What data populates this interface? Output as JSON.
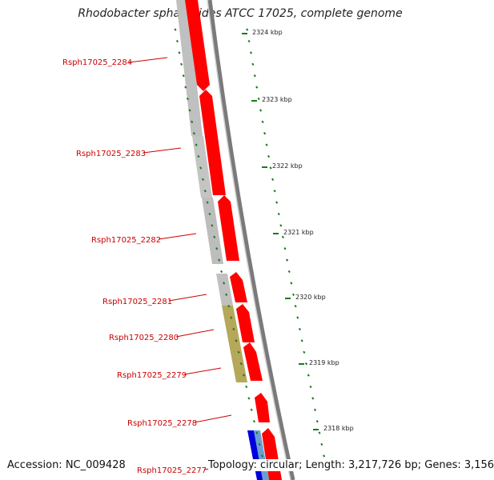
{
  "title": "Rhodobacter sphaeroides ATCC 17025, complete genome",
  "footer": {
    "accession": "Accession: NC_009428",
    "topology": "Topology: circular; Length: 3,217,726 bp; Genes: 3,156"
  },
  "colors": {
    "cds": "#ff0000",
    "gene": "#c0c0c0",
    "gene_alt": "#b5a85a",
    "ruler": "#888888",
    "tick": "#1a7a1a",
    "label": "#cc0000",
    "rna_blue": "#0000dd",
    "rna_lightblue": "#6aa0d0"
  },
  "ticks": [
    {
      "label": "2324 kbp"
    },
    {
      "label": "2323 kbp"
    },
    {
      "label": "2322 kbp"
    },
    {
      "label": "2321 kbp"
    },
    {
      "label": "2320 kbp"
    },
    {
      "label": "2319 kbp"
    },
    {
      "label": "2318 kbp"
    }
  ],
  "genes": [
    {
      "name": "Rsph17025_2284"
    },
    {
      "name": "Rsph17025_2283"
    },
    {
      "name": "Rsph17025_2282"
    },
    {
      "name": "Rsph17025_2281"
    },
    {
      "name": "Rsph17025_2280"
    },
    {
      "name": "Rsph17025_2279"
    },
    {
      "name": "Rsph17025_2278"
    },
    {
      "name": "Rsph17025_2277"
    }
  ]
}
